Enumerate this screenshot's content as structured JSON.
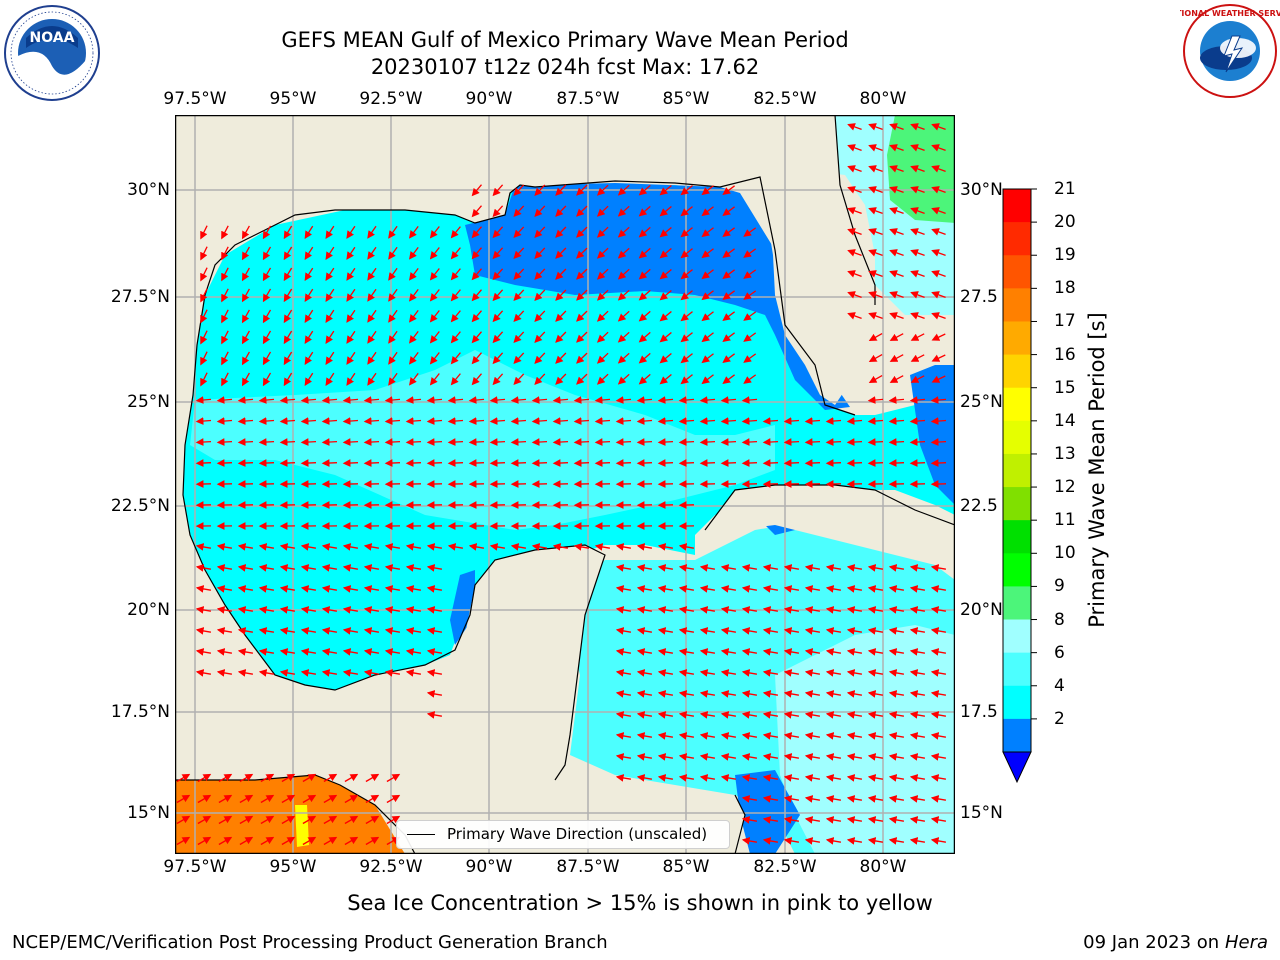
{
  "title_line1": "GEFS MEAN Gulf of Mexico Primary Wave Mean Period",
  "title_line2": "20230107 t12z 024h fcst   Max: 17.62",
  "lon_labels": [
    "97.5°W",
    "95°W",
    "92.5°W",
    "90°W",
    "87.5°W",
    "85°W",
    "82.5°W",
    "80°W"
  ],
  "lat_labels_left": [
    "30°N",
    "27.5°N",
    "25°N",
    "22.5°N",
    "20°N",
    "17.5°N",
    "15°N"
  ],
  "lat_labels_right": [
    "30°N",
    "27.5",
    "25°N",
    "22.5",
    "20°N",
    "17.5",
    "15°N"
  ],
  "colorbar": {
    "ticks": [
      "21",
      "20",
      "19",
      "18",
      "17",
      "16",
      "15",
      "14",
      "13",
      "12",
      "11",
      "10",
      "9",
      "8",
      "6",
      "4",
      "2"
    ],
    "colors": [
      "#ff0000",
      "#ff2a00",
      "#ff5500",
      "#ff8000",
      "#ffaa00",
      "#ffd400",
      "#ffff00",
      "#e5ff00",
      "#c0f000",
      "#80e000",
      "#00e000",
      "#00ff00",
      "#4cf57a",
      "#a0ffff",
      "#4cffff",
      "#00ffff",
      "#0080ff"
    ],
    "extend_color": "#0000ff",
    "label": "Primary Wave Mean Period [s]"
  },
  "legend_text": "Primary Wave Direction (unscaled)",
  "caption": "Sea Ice Concentration > 15% is shown in pink to yellow",
  "footer_left": "NCEP/EMC/Verification Post Processing Product Generation Branch",
  "footer_date": "09 Jan 2023 on ",
  "footer_machine": "Hera",
  "logos": {
    "left": "NOAA",
    "right": "NATIONAL WEATHER SERVICE"
  },
  "colors": {
    "land": "#efecdc",
    "ocean_light": "#00ffff",
    "ocean_blue": "#0080ff",
    "ocean_pale": "#a0ffff",
    "arrows": "#ff0000"
  }
}
